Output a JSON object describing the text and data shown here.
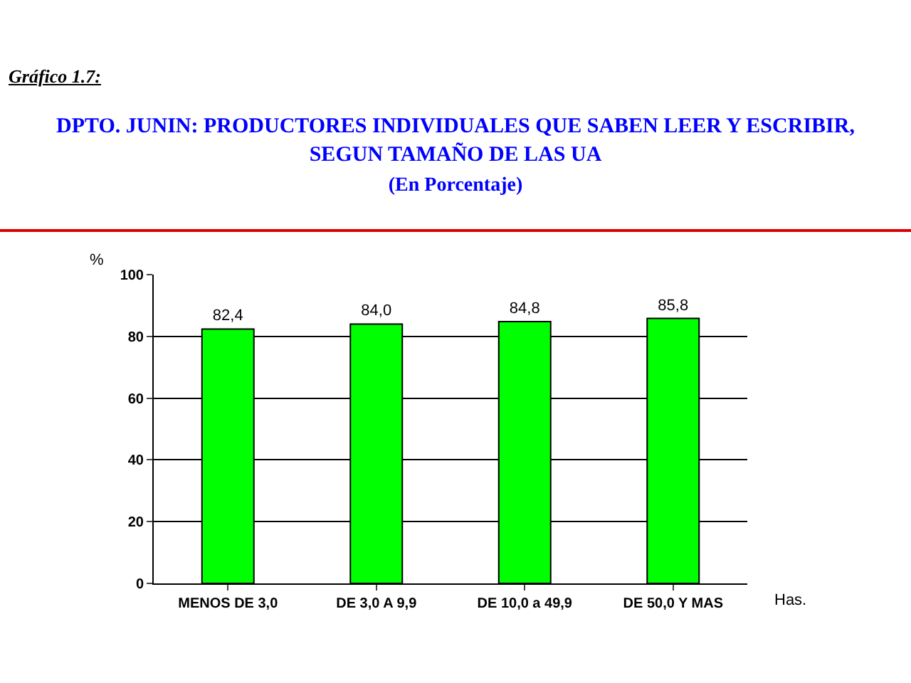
{
  "chart_data": {
    "type": "bar",
    "title": "DPTO. JUNIN: PRODUCTORES INDIVIDUALES QUE SABEN LEER Y ESCRIBIR, SEGUN TAMAÑO DE LAS UA",
    "subtitle": "(En Porcentaje)",
    "annotations": [
      "Gráfico 1.7:"
    ],
    "ylabel": "%",
    "xlabel": "Has.",
    "categories": [
      "MENOS DE 3,0",
      "DE 3,0 A 9,9",
      "DE 10,0 a 49,9",
      "DE 50,0 Y MAS"
    ],
    "values": [
      82.4,
      84.0,
      84.8,
      85.8
    ],
    "value_labels": [
      "82,4",
      "84,0",
      "84,8",
      "85,8"
    ],
    "color": "#00ff00",
    "ylim": [
      0,
      100
    ],
    "yticks": [
      0,
      20,
      40,
      60,
      80,
      100
    ],
    "grid": "y"
  }
}
